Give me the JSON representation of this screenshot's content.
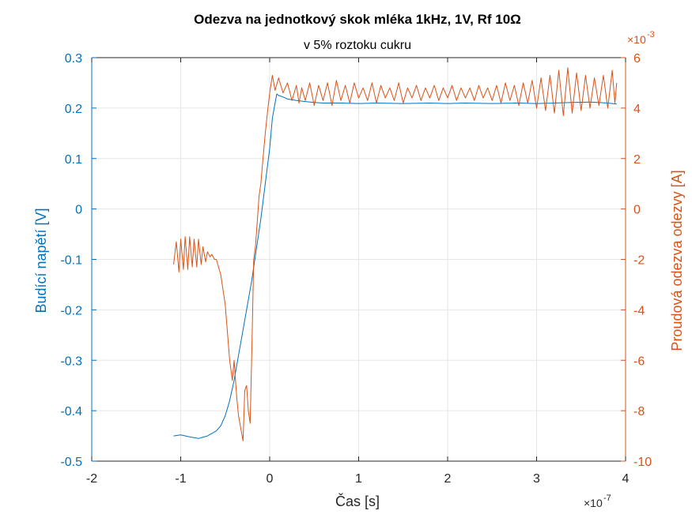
{
  "chart_data": {
    "type": "line",
    "title": "Odezva na jednotkový skok mléka 1kHz, 1V, Rf 10Ω",
    "subtitle": "v 5% roztoku cukru",
    "xlabel": "Čas [s]",
    "ylabel_left": "Budící napětí [V]",
    "ylabel_right": "Proudová odezva odezvy [A]",
    "x_exponent_label": "×10",
    "x_exponent": "-7",
    "right_exponent_label": "×10",
    "right_exponent": "-3",
    "xlim": [
      -2,
      4
    ],
    "ylim_left": [
      -0.5,
      0.3
    ],
    "ylim_right": [
      -10,
      6
    ],
    "x_ticks": [
      "-2",
      "-1",
      "0",
      "1",
      "2",
      "3",
      "4"
    ],
    "y_left_ticks": [
      "-0.5",
      "-0.4",
      "-0.3",
      "-0.2",
      "-0.1",
      "0",
      "0.1",
      "0.2",
      "0.3"
    ],
    "y_right_ticks": [
      "-10",
      "-8",
      "-6",
      "-4",
      "-2",
      "0",
      "2",
      "4",
      "6"
    ],
    "grid": true,
    "colors": {
      "left": "#0072BD",
      "right": "#D95319",
      "grid": "#e6e6e6",
      "axis": "#262626"
    },
    "series": [
      {
        "axis": "left",
        "x_unit": "1e-7 s",
        "x": [
          -1.08,
          -1.0,
          -0.9,
          -0.8,
          -0.7,
          -0.6,
          -0.55,
          -0.5,
          -0.45,
          -0.4,
          -0.35,
          -0.3,
          -0.25,
          -0.2,
          -0.15,
          -0.1,
          -0.05,
          0.0,
          0.03,
          0.06,
          0.08,
          0.1,
          0.15,
          0.2,
          0.3,
          0.4,
          0.5,
          0.6,
          0.8,
          1.0,
          1.2,
          1.5,
          1.8,
          2.0,
          2.2,
          2.5,
          2.8,
          3.0,
          3.2,
          3.4,
          3.6,
          3.8,
          3.9
        ],
        "y": [
          -0.45,
          -0.448,
          -0.452,
          -0.455,
          -0.45,
          -0.44,
          -0.43,
          -0.41,
          -0.38,
          -0.34,
          -0.29,
          -0.24,
          -0.19,
          -0.14,
          -0.08,
          -0.02,
          0.05,
          0.12,
          0.18,
          0.21,
          0.228,
          0.225,
          0.222,
          0.218,
          0.215,
          0.213,
          0.211,
          0.21,
          0.21,
          0.209,
          0.21,
          0.209,
          0.21,
          0.209,
          0.21,
          0.209,
          0.21,
          0.209,
          0.21,
          0.211,
          0.212,
          0.21,
          0.208
        ]
      },
      {
        "axis": "right",
        "x_unit": "1e-7 s",
        "x": [
          -1.08,
          -1.05,
          -1.02,
          -1.0,
          -0.97,
          -0.95,
          -0.92,
          -0.9,
          -0.87,
          -0.85,
          -0.82,
          -0.8,
          -0.77,
          -0.75,
          -0.72,
          -0.7,
          -0.67,
          -0.65,
          -0.62,
          -0.6,
          -0.55,
          -0.5,
          -0.45,
          -0.42,
          -0.4,
          -0.37,
          -0.35,
          -0.32,
          -0.3,
          -0.28,
          -0.26,
          -0.24,
          -0.22,
          -0.2,
          -0.18,
          -0.16,
          -0.14,
          -0.12,
          -0.1,
          -0.08,
          -0.05,
          -0.02,
          0.0,
          0.03,
          0.06,
          0.1,
          0.15,
          0.2,
          0.25,
          0.3,
          0.33,
          0.36,
          0.4,
          0.45,
          0.5,
          0.55,
          0.6,
          0.65,
          0.7,
          0.75,
          0.8,
          0.85,
          0.9,
          0.95,
          1.0,
          1.05,
          1.1,
          1.15,
          1.2,
          1.25,
          1.3,
          1.35,
          1.4,
          1.45,
          1.5,
          1.55,
          1.6,
          1.65,
          1.7,
          1.75,
          1.8,
          1.85,
          1.9,
          1.95,
          2.0,
          2.05,
          2.1,
          2.15,
          2.2,
          2.25,
          2.3,
          2.35,
          2.4,
          2.45,
          2.5,
          2.55,
          2.6,
          2.65,
          2.7,
          2.75,
          2.8,
          2.85,
          2.9,
          2.95,
          3.0,
          3.05,
          3.1,
          3.15,
          3.2,
          3.25,
          3.3,
          3.35,
          3.4,
          3.45,
          3.5,
          3.55,
          3.6,
          3.65,
          3.7,
          3.75,
          3.8,
          3.85,
          3.88,
          3.9
        ],
        "y": [
          -2.2,
          -1.3,
          -2.5,
          -1.2,
          -2.4,
          -1.1,
          -2.4,
          -1.1,
          -2.3,
          -1.2,
          -2.3,
          -1.2,
          -2.2,
          -1.5,
          -2.1,
          -1.7,
          -1.9,
          -1.8,
          -2.0,
          -2.0,
          -2.6,
          -3.8,
          -6.0,
          -6.8,
          -6.0,
          -7.5,
          -8.2,
          -8.8,
          -9.2,
          -7.2,
          -7.0,
          -8.0,
          -8.5,
          -5.5,
          -2.0,
          -1.5,
          -0.5,
          0.5,
          1.0,
          1.8,
          3.0,
          4.0,
          4.6,
          5.3,
          4.7,
          5.2,
          4.6,
          5.0,
          4.3,
          4.9,
          4.2,
          4.8,
          4.3,
          5.0,
          4.1,
          4.9,
          4.3,
          5.0,
          4.1,
          5.1,
          4.3,
          4.9,
          4.2,
          5.0,
          4.4,
          4.8,
          4.3,
          5.0,
          4.2,
          4.9,
          4.4,
          4.8,
          4.3,
          5.0,
          4.2,
          4.8,
          4.4,
          4.9,
          4.3,
          4.8,
          4.4,
          4.9,
          4.3,
          4.8,
          4.4,
          4.9,
          4.3,
          4.8,
          4.4,
          4.8,
          4.3,
          4.9,
          4.4,
          4.8,
          4.3,
          4.9,
          4.2,
          5.0,
          4.3,
          4.9,
          4.1,
          5.0,
          4.2,
          5.1,
          4.0,
          5.2,
          3.9,
          5.3,
          3.8,
          5.5,
          3.7,
          5.6,
          3.8,
          5.4,
          3.9,
          5.3,
          4.0,
          5.2,
          4.1,
          5.3,
          4.0,
          5.5,
          4.2,
          5.0
        ]
      }
    ]
  }
}
